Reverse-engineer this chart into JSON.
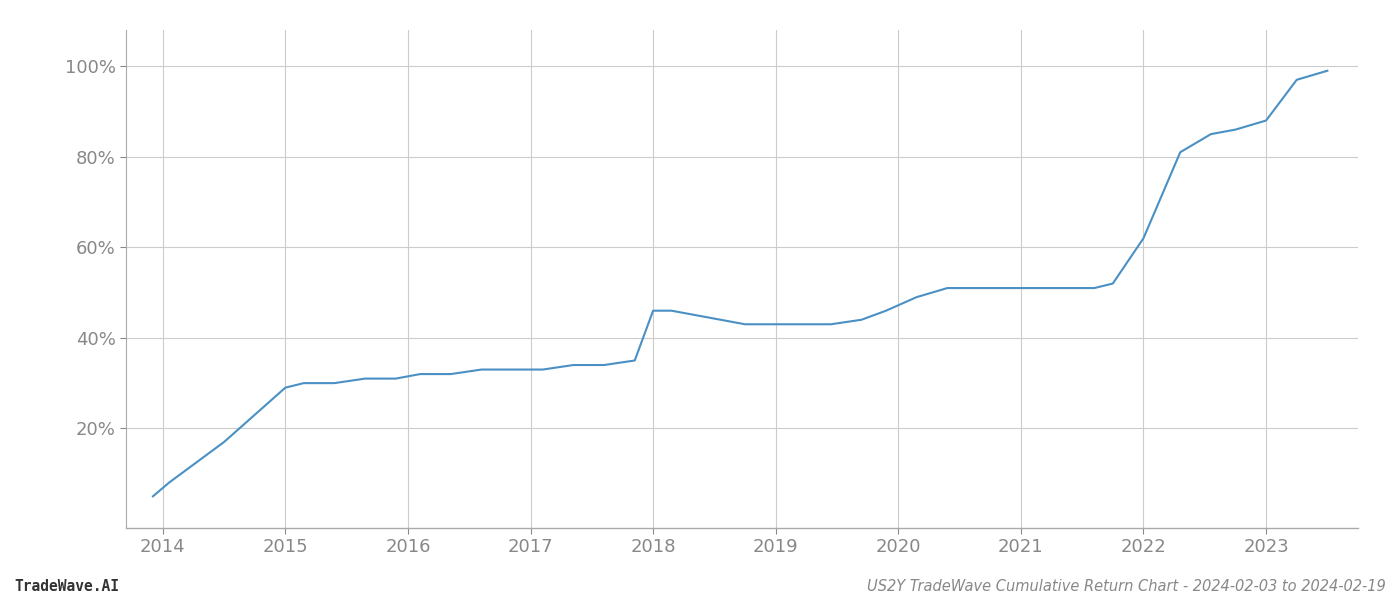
{
  "title": "US2Y TradeWave Cumulative Return Chart - 2024-02-03 to 2024-02-19",
  "footer_left": "TradeWave.AI",
  "footer_right": "US2Y TradeWave Cumulative Return Chart - 2024-02-03 to 2024-02-19",
  "line_color": "#4a90c4",
  "background_color": "#ffffff",
  "grid_color": "#cccccc",
  "x_values": [
    2013.92,
    2014.05,
    2014.25,
    2014.5,
    2014.75,
    2015.0,
    2015.15,
    2015.4,
    2015.65,
    2015.9,
    2016.1,
    2016.35,
    2016.6,
    2016.85,
    2017.1,
    2017.35,
    2017.6,
    2017.85,
    2018.0,
    2018.15,
    2018.35,
    2018.55,
    2018.75,
    2019.0,
    2019.2,
    2019.45,
    2019.7,
    2019.9,
    2020.15,
    2020.4,
    2020.65,
    2020.9,
    2021.1,
    2021.25,
    2021.45,
    2021.6,
    2021.75,
    2022.0,
    2022.3,
    2022.55,
    2022.75,
    2023.0,
    2023.25,
    2023.5
  ],
  "y_values": [
    5,
    8,
    12,
    17,
    23,
    29,
    30,
    30,
    31,
    31,
    32,
    32,
    33,
    33,
    33,
    34,
    34,
    35,
    46,
    46,
    45,
    44,
    43,
    43,
    43,
    43,
    44,
    46,
    49,
    51,
    51,
    51,
    51,
    51,
    51,
    51,
    52,
    62,
    81,
    85,
    86,
    88,
    97,
    99
  ],
  "yticks": [
    20,
    40,
    60,
    80,
    100
  ],
  "ytick_labels": [
    "20%",
    "40%",
    "60%",
    "80%",
    "100%"
  ],
  "xticks": [
    2014,
    2015,
    2016,
    2017,
    2018,
    2019,
    2020,
    2021,
    2022,
    2023
  ],
  "xlim": [
    2013.7,
    2023.75
  ],
  "ylim": [
    -2,
    108
  ],
  "figsize": [
    14.0,
    6.0
  ],
  "dpi": 100,
  "line_width": 1.5,
  "spine_color": "#aaaaaa",
  "tick_color": "#888888",
  "label_color": "#888888",
  "footer_fontsize": 10.5,
  "tick_fontsize": 13
}
